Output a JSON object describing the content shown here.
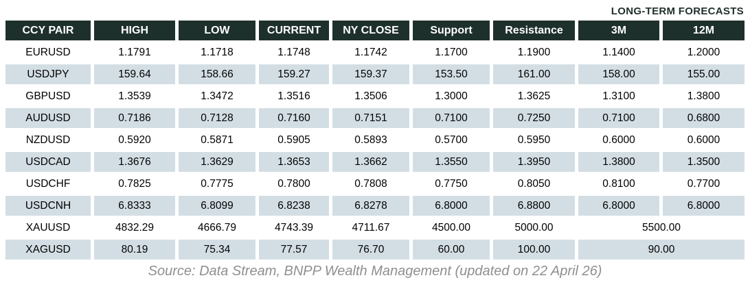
{
  "title": "LONG-TERM FORECASTS",
  "source": "Source: Data Stream, BNPP Wealth Management (updated on 22 April 26)",
  "colors": {
    "header_bg": "#1e302c",
    "header_text": "#ffffff",
    "alt_row_bg": "#d3dee4",
    "title_text": "#1e302c",
    "source_text": "#8f8f8f"
  },
  "chart_data": {
    "type": "table",
    "columns": [
      "CCY PAIR",
      "HIGH",
      "LOW",
      "CURRENT",
      "NY CLOSE",
      "Support",
      "Resistance",
      "3M",
      "12M"
    ],
    "rows": [
      {
        "pair": "EURUSD",
        "high": "1.1791",
        "low": "1.1718",
        "current": "1.1748",
        "ny_close": "1.1742",
        "support": "1.1700",
        "resistance": "1.1900",
        "m3": "1.1400",
        "m12": "1.2000"
      },
      {
        "pair": "USDJPY",
        "high": "159.64",
        "low": "158.66",
        "current": "159.27",
        "ny_close": "159.37",
        "support": "153.50",
        "resistance": "161.00",
        "m3": "158.00",
        "m12": "155.00"
      },
      {
        "pair": "GBPUSD",
        "high": "1.3539",
        "low": "1.3472",
        "current": "1.3516",
        "ny_close": "1.3506",
        "support": "1.3000",
        "resistance": "1.3625",
        "m3": "1.3100",
        "m12": "1.3800"
      },
      {
        "pair": "AUDUSD",
        "high": "0.7186",
        "low": "0.7128",
        "current": "0.7160",
        "ny_close": "0.7151",
        "support": "0.7100",
        "resistance": "0.7250",
        "m3": "0.7100",
        "m12": "0.6800"
      },
      {
        "pair": "NZDUSD",
        "high": "0.5920",
        "low": "0.5871",
        "current": "0.5905",
        "ny_close": "0.5893",
        "support": "0.5700",
        "resistance": "0.5950",
        "m3": "0.6000",
        "m12": "0.6000"
      },
      {
        "pair": "USDCAD",
        "high": "1.3676",
        "low": "1.3629",
        "current": "1.3653",
        "ny_close": "1.3662",
        "support": "1.3550",
        "resistance": "1.3950",
        "m3": "1.3800",
        "m12": "1.3500"
      },
      {
        "pair": "USDCHF",
        "high": "0.7825",
        "low": "0.7775",
        "current": "0.7800",
        "ny_close": "0.7808",
        "support": "0.7750",
        "resistance": "0.8050",
        "m3": "0.8100",
        "m12": "0.7700"
      },
      {
        "pair": "USDCNH",
        "high": "6.8333",
        "low": "6.8099",
        "current": "6.8238",
        "ny_close": "6.8278",
        "support": "6.8000",
        "resistance": "6.8800",
        "m3": "6.8000",
        "m12": "6.8000"
      },
      {
        "pair": "XAUUSD",
        "high": "4832.29",
        "low": "4666.79",
        "current": "4743.39",
        "ny_close": "4711.67",
        "support": "4500.00",
        "resistance": "5000.00",
        "m3_12m": "5500.00"
      },
      {
        "pair": "XAGUSD",
        "high": "80.19",
        "low": "75.34",
        "current": "77.57",
        "ny_close": "76.70",
        "support": "60.00",
        "resistance": "100.00",
        "m3_12m": "90.00"
      }
    ]
  }
}
